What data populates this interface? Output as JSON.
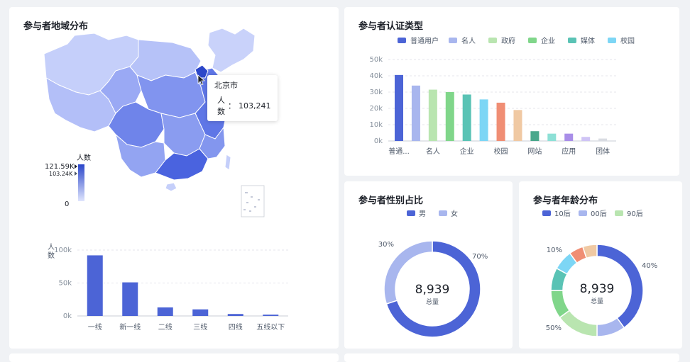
{
  "colors": {
    "primary": "#4c64d6",
    "map_dark": "#2b46c9",
    "map_light": "#c9d2fa",
    "grid": "#e5e6eb"
  },
  "region_card": {
    "title": "参与者地域分布",
    "tooltip": {
      "city": "北京市",
      "label": "人数",
      "sep": "：",
      "value": "103,241"
    },
    "visual_map": {
      "title": "人数",
      "max": "121.59K",
      "current": "103.24K",
      "min": "0"
    }
  },
  "cert_card": {
    "title": "参与者认证类型"
  },
  "gender_card": {
    "title": "参与者性别占比",
    "center_value": "8,939",
    "center_label": "总量"
  },
  "age_card": {
    "title": "参与者年龄分布",
    "center_value": "8,939",
    "center_label": "总量"
  },
  "chart_data": [
    {
      "type": "bar",
      "id": "city_tier",
      "ylabel": "人数",
      "categories": [
        "一线",
        "新一线",
        "二线",
        "三线",
        "四线",
        "五线以下"
      ],
      "values": [
        92000,
        51000,
        13000,
        10000,
        3000,
        2000
      ],
      "ylim": [
        0,
        100000
      ],
      "yticks": [
        "0k",
        "50k",
        "100k"
      ],
      "ytick_values": [
        0,
        50000,
        100000
      ],
      "grid": "dashed"
    },
    {
      "type": "bar",
      "id": "cert_type",
      "categories": [
        "普通...",
        "名人",
        "企业",
        "校园",
        "网站",
        "应用",
        "团体"
      ],
      "bars": [
        {
          "value": 40500,
          "color": "#4c64d6"
        },
        {
          "value": 34000,
          "color": "#a8b6ee"
        },
        {
          "value": 31500,
          "color": "#b9e5b0"
        },
        {
          "value": 30000,
          "color": "#80d68a"
        },
        {
          "value": 28500,
          "color": "#5ac3b5"
        },
        {
          "value": 25500,
          "color": "#7dd6f5"
        },
        {
          "value": 23500,
          "color": "#f08e74"
        },
        {
          "value": 19000,
          "color": "#f0c9a3"
        },
        {
          "value": 6000,
          "color": "#4aa88c"
        },
        {
          "value": 4500,
          "color": "#8de0d6"
        },
        {
          "value": 4500,
          "color": "#a98ee8"
        },
        {
          "value": 2500,
          "color": "#cfc4f5"
        },
        {
          "value": 1500,
          "color": "#d9dce2"
        }
      ],
      "legend": [
        {
          "name": "普通用户",
          "color": "#4c64d6"
        },
        {
          "name": "名人",
          "color": "#a8b6ee"
        },
        {
          "name": "政府",
          "color": "#b9e5b0"
        },
        {
          "name": "企业",
          "color": "#80d68a"
        },
        {
          "name": "媒体",
          "color": "#5ac3b5"
        },
        {
          "name": "校园",
          "color": "#7dd6f5"
        }
      ],
      "ylim": [
        0,
        50000
      ],
      "yticks": [
        "0k",
        "10k",
        "20k",
        "30k",
        "40k",
        "50k"
      ],
      "ytick_values": [
        0,
        10000,
        20000,
        30000,
        40000,
        50000
      ],
      "grid": "dashed"
    },
    {
      "type": "pie",
      "id": "gender",
      "slices": [
        {
          "name": "男",
          "value": 70,
          "label": "70%",
          "color": "#4c64d6"
        },
        {
          "name": "女",
          "value": 30,
          "label": "30%",
          "color": "#a8b6ee"
        }
      ]
    },
    {
      "type": "pie",
      "id": "age",
      "legend": [
        {
          "name": "10后",
          "color": "#4c64d6"
        },
        {
          "name": "00后",
          "color": "#a8b6ee"
        },
        {
          "name": "90后",
          "color": "#b9e5b0"
        }
      ],
      "slices": [
        {
          "value": 40,
          "label": "40%",
          "color": "#4c64d6"
        },
        {
          "value": 10,
          "label": "",
          "color": "#a8b6ee"
        },
        {
          "value": 15,
          "label": "",
          "color": "#b9e5b0"
        },
        {
          "value": 10,
          "label": "50%",
          "color": "#80d68a"
        },
        {
          "value": 8,
          "label": "",
          "color": "#5ac3b5"
        },
        {
          "value": 7,
          "label": "",
          "color": "#7dd6f5"
        },
        {
          "value": 5,
          "label": "10%",
          "color": "#f08e74"
        },
        {
          "value": 5,
          "label": "",
          "color": "#f0c9a3"
        }
      ]
    }
  ]
}
